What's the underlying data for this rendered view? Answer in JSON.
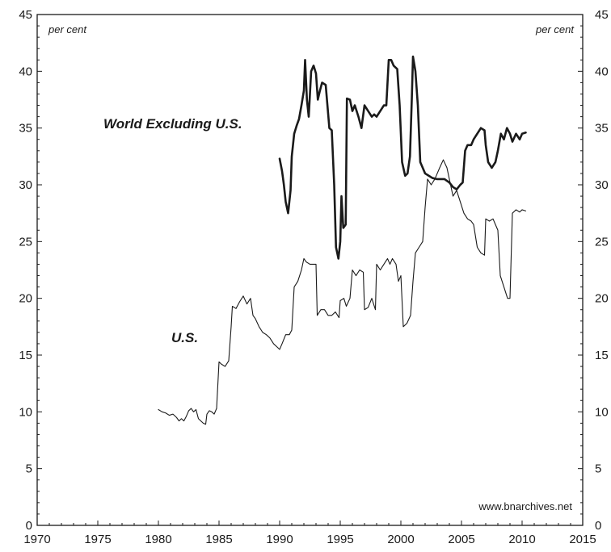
{
  "chart_data": {
    "type": "line",
    "y_unit_label": "per cent",
    "source": "www.bnarchives.net",
    "xlim": [
      1970,
      2015
    ],
    "ylim": [
      0,
      45
    ],
    "x_ticks": [
      "1970",
      "1975",
      "1980",
      "1985",
      "1990",
      "1995",
      "2000",
      "2005",
      "2010",
      "2015"
    ],
    "y_ticks": [
      "0",
      "5",
      "10",
      "15",
      "20",
      "25",
      "30",
      "35",
      "40",
      "45"
    ],
    "grid": false,
    "series": [
      {
        "name": "World Excluding U.S.",
        "stroke_width": 2.6,
        "color": "#1a1a1a",
        "points": [
          [
            1990.0,
            32.3
          ],
          [
            1990.2,
            31.2
          ],
          [
            1990.35,
            30.0
          ],
          [
            1990.5,
            28.5
          ],
          [
            1990.7,
            27.5
          ],
          [
            1990.9,
            29.5
          ],
          [
            1991.0,
            32.5
          ],
          [
            1991.2,
            34.5
          ],
          [
            1991.4,
            35.2
          ],
          [
            1991.6,
            35.8
          ],
          [
            1991.8,
            37.0
          ],
          [
            1992.0,
            38.3
          ],
          [
            1992.1,
            41.0
          ],
          [
            1992.25,
            37.5
          ],
          [
            1992.4,
            36.0
          ],
          [
            1992.6,
            40.0
          ],
          [
            1992.8,
            40.5
          ],
          [
            1993.0,
            39.8
          ],
          [
            1993.15,
            37.5
          ],
          [
            1993.3,
            38.2
          ],
          [
            1993.5,
            39.0
          ],
          [
            1993.8,
            38.8
          ],
          [
            1994.1,
            35.0
          ],
          [
            1994.3,
            34.8
          ],
          [
            1994.5,
            30.0
          ],
          [
            1994.65,
            24.5
          ],
          [
            1994.85,
            23.5
          ],
          [
            1995.0,
            25.0
          ],
          [
            1995.1,
            29.0
          ],
          [
            1995.25,
            26.2
          ],
          [
            1995.45,
            26.5
          ],
          [
            1995.55,
            37.6
          ],
          [
            1995.8,
            37.5
          ],
          [
            1996.0,
            36.5
          ],
          [
            1996.2,
            37.0
          ],
          [
            1996.5,
            36.0
          ],
          [
            1996.75,
            35.0
          ],
          [
            1997.0,
            37.0
          ],
          [
            1997.3,
            36.5
          ],
          [
            1997.6,
            36.0
          ],
          [
            1997.8,
            36.2
          ],
          [
            1998.0,
            36.0
          ],
          [
            1998.3,
            36.5
          ],
          [
            1998.6,
            37.0
          ],
          [
            1998.8,
            37.0
          ],
          [
            1999.0,
            41.0
          ],
          [
            1999.2,
            41.0
          ],
          [
            1999.4,
            40.5
          ],
          [
            1999.7,
            40.2
          ],
          [
            1999.9,
            37.0
          ],
          [
            2000.1,
            32.0
          ],
          [
            2000.35,
            30.8
          ],
          [
            2000.55,
            31.0
          ],
          [
            2000.75,
            32.5
          ],
          [
            2000.9,
            37.5
          ],
          [
            2001.0,
            41.3
          ],
          [
            2001.2,
            40.0
          ],
          [
            2001.4,
            37.0
          ],
          [
            2001.6,
            32.0
          ],
          [
            2001.8,
            31.5
          ],
          [
            2002.0,
            31.0
          ],
          [
            2002.3,
            30.8
          ],
          [
            2002.6,
            30.6
          ],
          [
            2003.0,
            30.5
          ],
          [
            2003.3,
            30.5
          ],
          [
            2003.6,
            30.5
          ],
          [
            2004.0,
            30.2
          ],
          [
            2004.3,
            29.8
          ],
          [
            2004.6,
            29.6
          ],
          [
            2004.9,
            30.0
          ],
          [
            2005.1,
            30.2
          ],
          [
            2005.3,
            33.0
          ],
          [
            2005.5,
            33.5
          ],
          [
            2005.8,
            33.5
          ],
          [
            2006.0,
            34.0
          ],
          [
            2006.3,
            34.5
          ],
          [
            2006.6,
            35.0
          ],
          [
            2006.9,
            34.8
          ],
          [
            2007.0,
            33.5
          ],
          [
            2007.2,
            32.0
          ],
          [
            2007.5,
            31.5
          ],
          [
            2007.8,
            32.0
          ],
          [
            2008.0,
            33.0
          ],
          [
            2008.25,
            34.5
          ],
          [
            2008.5,
            34.0
          ],
          [
            2008.75,
            35.0
          ],
          [
            2009.0,
            34.5
          ],
          [
            2009.2,
            33.8
          ],
          [
            2009.5,
            34.5
          ],
          [
            2009.8,
            34.0
          ],
          [
            2010.0,
            34.5
          ],
          [
            2010.3,
            34.6
          ]
        ]
      },
      {
        "name": "U.S.",
        "stroke_width": 1.1,
        "color": "#1a1a1a",
        "points": [
          [
            1980.0,
            10.2
          ],
          [
            1980.3,
            10.0
          ],
          [
            1980.6,
            9.9
          ],
          [
            1980.9,
            9.7
          ],
          [
            1981.2,
            9.8
          ],
          [
            1981.5,
            9.5
          ],
          [
            1981.7,
            9.2
          ],
          [
            1981.9,
            9.4
          ],
          [
            1982.1,
            9.2
          ],
          [
            1982.3,
            9.6
          ],
          [
            1982.5,
            10.1
          ],
          [
            1982.7,
            10.3
          ],
          [
            1982.9,
            10.0
          ],
          [
            1983.1,
            10.2
          ],
          [
            1983.3,
            9.4
          ],
          [
            1983.5,
            9.2
          ],
          [
            1983.7,
            9.0
          ],
          [
            1983.9,
            8.9
          ],
          [
            1984.0,
            9.8
          ],
          [
            1984.2,
            10.1
          ],
          [
            1984.4,
            10.0
          ],
          [
            1984.6,
            9.8
          ],
          [
            1984.8,
            10.3
          ],
          [
            1985.0,
            14.4
          ],
          [
            1985.2,
            14.2
          ],
          [
            1985.5,
            14.0
          ],
          [
            1985.8,
            14.5
          ],
          [
            1986.0,
            17.5
          ],
          [
            1986.1,
            19.3
          ],
          [
            1986.4,
            19.1
          ],
          [
            1986.7,
            19.7
          ],
          [
            1987.0,
            20.2
          ],
          [
            1987.3,
            19.5
          ],
          [
            1987.6,
            20.0
          ],
          [
            1987.8,
            18.5
          ],
          [
            1988.0,
            18.2
          ],
          [
            1988.3,
            17.5
          ],
          [
            1988.6,
            17.0
          ],
          [
            1988.9,
            16.8
          ],
          [
            1989.2,
            16.5
          ],
          [
            1989.5,
            16.0
          ],
          [
            1989.8,
            15.7
          ],
          [
            1990.0,
            15.5
          ],
          [
            1990.2,
            16.0
          ],
          [
            1990.5,
            16.8
          ],
          [
            1990.8,
            16.8
          ],
          [
            1991.0,
            17.2
          ],
          [
            1991.2,
            21.0
          ],
          [
            1991.5,
            21.5
          ],
          [
            1991.8,
            22.5
          ],
          [
            1992.0,
            23.5
          ],
          [
            1992.2,
            23.2
          ],
          [
            1992.5,
            23.0
          ],
          [
            1992.8,
            23.0
          ],
          [
            1993.0,
            23.0
          ],
          [
            1993.1,
            18.5
          ],
          [
            1993.4,
            19.0
          ],
          [
            1993.7,
            19.0
          ],
          [
            1994.0,
            18.5
          ],
          [
            1994.3,
            18.5
          ],
          [
            1994.6,
            18.8
          ],
          [
            1994.9,
            18.3
          ],
          [
            1995.0,
            19.8
          ],
          [
            1995.3,
            20.0
          ],
          [
            1995.5,
            19.3
          ],
          [
            1995.8,
            20.0
          ],
          [
            1996.0,
            22.5
          ],
          [
            1996.3,
            22.0
          ],
          [
            1996.6,
            22.5
          ],
          [
            1996.9,
            22.3
          ],
          [
            1997.0,
            19.0
          ],
          [
            1997.3,
            19.2
          ],
          [
            1997.6,
            20.0
          ],
          [
            1997.9,
            19.0
          ],
          [
            1998.0,
            23.0
          ],
          [
            1998.3,
            22.5
          ],
          [
            1998.6,
            23.0
          ],
          [
            1998.9,
            23.5
          ],
          [
            1999.1,
            23.0
          ],
          [
            1999.3,
            23.5
          ],
          [
            1999.6,
            23.0
          ],
          [
            1999.8,
            21.5
          ],
          [
            2000.0,
            22.0
          ],
          [
            2000.2,
            17.5
          ],
          [
            2000.5,
            17.8
          ],
          [
            2000.8,
            18.5
          ],
          [
            2001.0,
            21.5
          ],
          [
            2001.2,
            24.0
          ],
          [
            2001.5,
            24.5
          ],
          [
            2001.8,
            25.0
          ],
          [
            2002.0,
            28.0
          ],
          [
            2002.2,
            30.5
          ],
          [
            2002.5,
            30.0
          ],
          [
            2002.8,
            30.5
          ],
          [
            2003.0,
            31.0
          ],
          [
            2003.2,
            31.5
          ],
          [
            2003.5,
            32.2
          ],
          [
            2003.8,
            31.5
          ],
          [
            2004.0,
            30.5
          ],
          [
            2004.3,
            29.0
          ],
          [
            2004.6,
            29.5
          ],
          [
            2004.9,
            28.5
          ],
          [
            2005.2,
            27.5
          ],
          [
            2005.5,
            27.0
          ],
          [
            2005.8,
            26.8
          ],
          [
            2006.0,
            26.5
          ],
          [
            2006.3,
            24.5
          ],
          [
            2006.6,
            24.0
          ],
          [
            2006.9,
            23.8
          ],
          [
            2007.0,
            27.0
          ],
          [
            2007.3,
            26.8
          ],
          [
            2007.6,
            27.0
          ],
          [
            2007.8,
            26.5
          ],
          [
            2008.0,
            26.0
          ],
          [
            2008.2,
            22.0
          ],
          [
            2008.5,
            21.0
          ],
          [
            2008.8,
            20.0
          ],
          [
            2009.0,
            20.0
          ],
          [
            2009.2,
            27.5
          ],
          [
            2009.5,
            27.8
          ],
          [
            2009.8,
            27.6
          ],
          [
            2010.0,
            27.8
          ],
          [
            2010.3,
            27.7
          ]
        ]
      }
    ]
  }
}
